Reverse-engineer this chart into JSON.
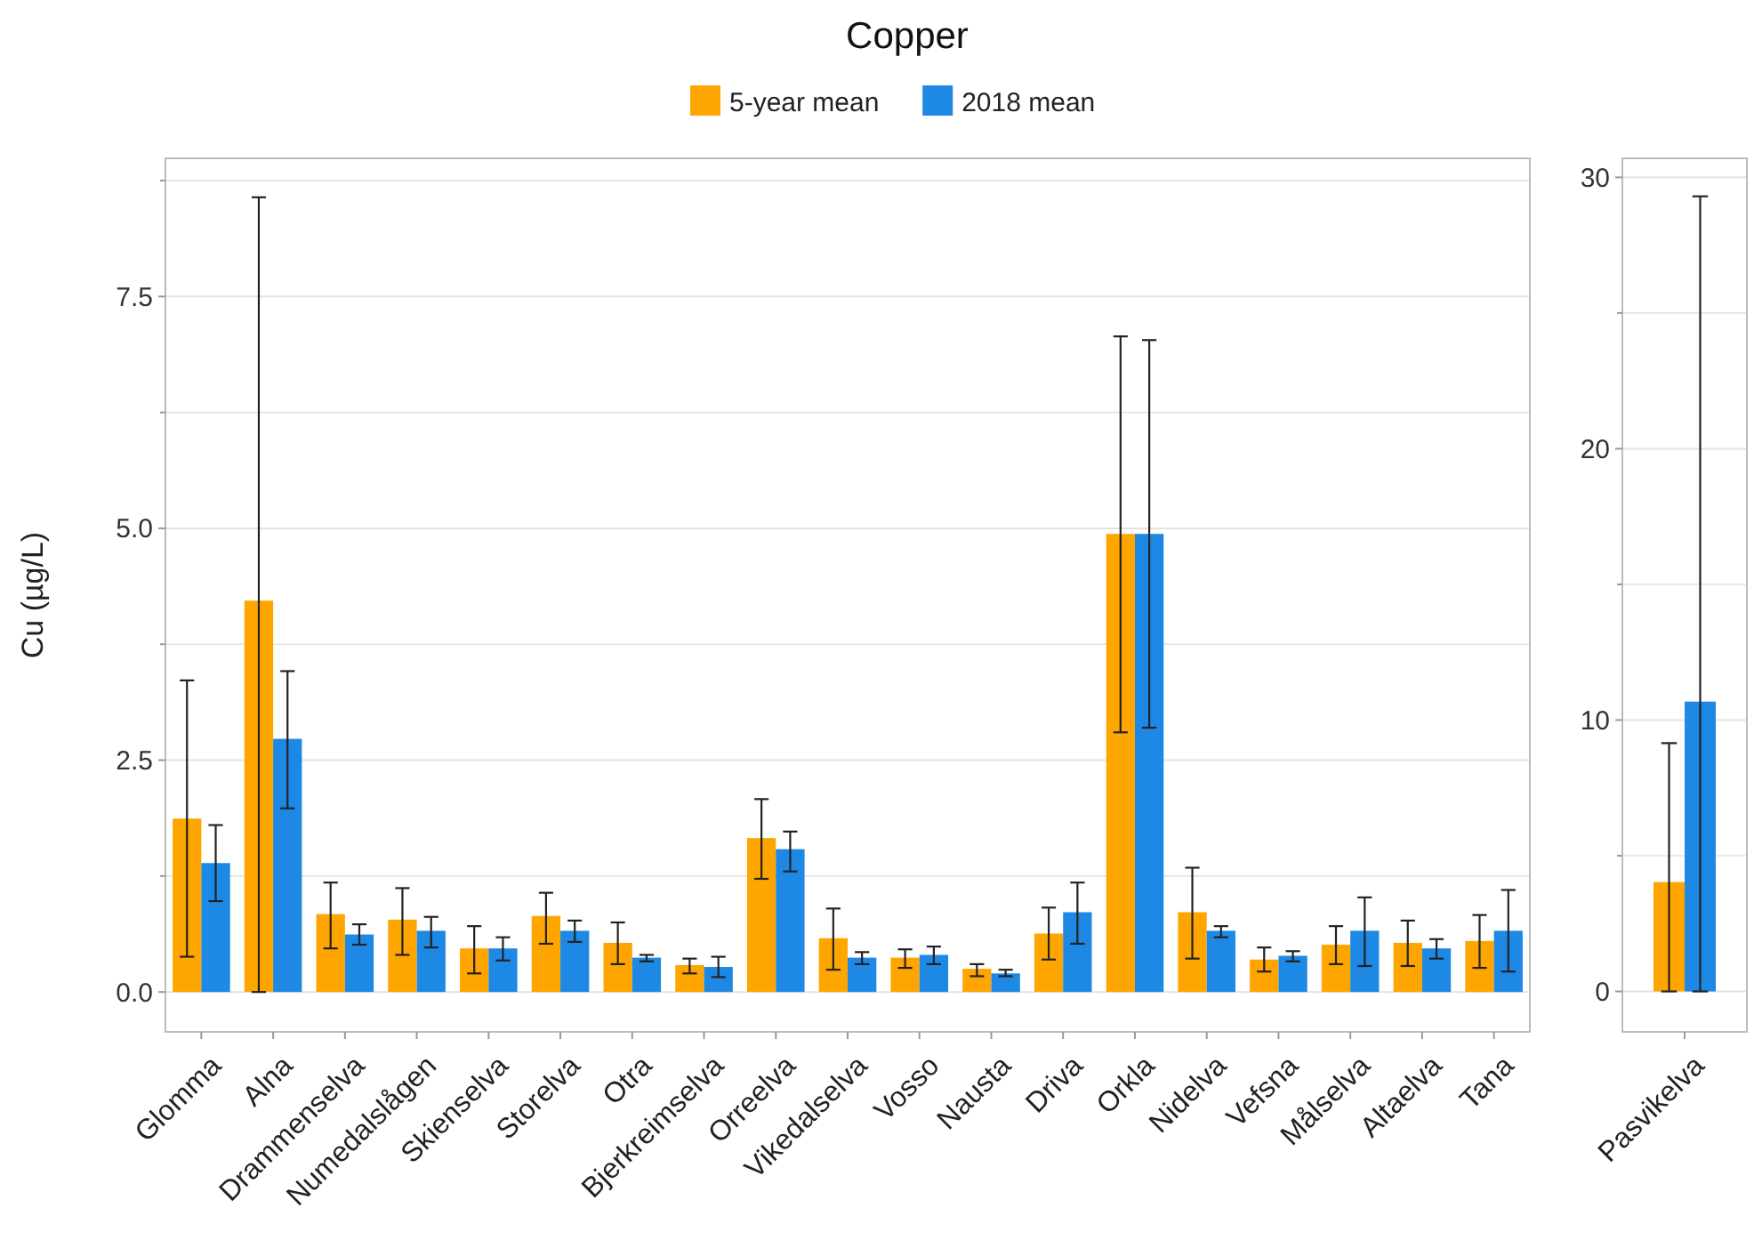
{
  "chart_data": [
    {
      "type": "bar",
      "title": "Copper",
      "ylabel": "Cu (µg/L)",
      "legend": "top",
      "grid": true,
      "categories": [
        "Glomma",
        "Alna",
        "Drammenselva",
        "Numedalslågen",
        "Skienselva",
        "Storelva",
        "Otra",
        "Bjerkreimselva",
        "Orreelva",
        "Vikedalselva",
        "Vosso",
        "Nausta",
        "Driva",
        "Orkla",
        "Nidelva",
        "Vefsna",
        "Målselva",
        "Altaelva",
        "Tana"
      ],
      "ylim": [
        -0.43,
        8.99
      ],
      "yticks": [
        {
          "value": 0,
          "label": "0.0"
        },
        {
          "value": 1.25,
          "label": null
        },
        2.5,
        {
          "value": 3.75,
          "label": null
        },
        {
          "value": 5,
          "label": "5.0"
        },
        {
          "value": 6.25,
          "label": null
        },
        7.5,
        {
          "value": 8.75,
          "label": null
        }
      ],
      "series": [
        {
          "name": "5-year mean",
          "color": "#ffa500",
          "values": [
            1.87,
            4.22,
            0.84,
            0.78,
            0.47,
            0.82,
            0.53,
            0.29,
            1.66,
            0.58,
            0.37,
            0.25,
            0.63,
            4.94,
            0.86,
            0.35,
            0.51,
            0.53,
            0.55
          ],
          "errors": [
            [
              0.38,
              3.36
            ],
            [
              0,
              8.57
            ],
            [
              0.47,
              1.18
            ],
            [
              0.4,
              1.12
            ],
            [
              0.2,
              0.71
            ],
            [
              0.52,
              1.07
            ],
            [
              0.3,
              0.75
            ],
            [
              0.2,
              0.36
            ],
            [
              1.22,
              2.08
            ],
            [
              0.24,
              0.9
            ],
            [
              0.26,
              0.46
            ],
            [
              0.17,
              0.3
            ],
            [
              0.35,
              0.91
            ],
            [
              2.8,
              7.07
            ],
            [
              0.36,
              1.34
            ],
            [
              0.22,
              0.48
            ],
            [
              0.3,
              0.71
            ],
            [
              0.28,
              0.77
            ],
            [
              0.26,
              0.83
            ]
          ]
        },
        {
          "name": "2018 mean",
          "color": "#1e88e5",
          "values": [
            1.39,
            2.73,
            0.62,
            0.66,
            0.47,
            0.66,
            0.37,
            0.27,
            1.54,
            0.37,
            0.4,
            0.2,
            0.86,
            4.94,
            0.66,
            0.39,
            0.66,
            0.47,
            0.66
          ],
          "errors": [
            [
              0.98,
              1.8
            ],
            [
              1.98,
              3.46
            ],
            [
              0.51,
              0.73
            ],
            [
              0.48,
              0.81
            ],
            [
              0.34,
              0.59
            ],
            [
              0.54,
              0.77
            ],
            [
              0.33,
              0.4
            ],
            [
              0.16,
              0.38
            ],
            [
              1.3,
              1.73
            ],
            [
              0.3,
              0.43
            ],
            [
              0.3,
              0.49
            ],
            [
              0.17,
              0.24
            ],
            [
              0.52,
              1.18
            ],
            [
              2.85,
              7.03
            ],
            [
              0.59,
              0.71
            ],
            [
              0.33,
              0.44
            ],
            [
              0.28,
              1.02
            ],
            [
              0.36,
              0.57
            ],
            [
              0.22,
              1.1
            ]
          ]
        }
      ]
    },
    {
      "type": "bar",
      "grid": true,
      "categories": [
        "Pasvikelva"
      ],
      "ylim": [
        -1.49,
        30.7
      ],
      "yticks": [
        0,
        {
          "value": 5,
          "label": null
        },
        10,
        {
          "value": 15,
          "label": null
        },
        20,
        {
          "value": 25,
          "label": null
        },
        30
      ],
      "series": [
        {
          "color": "#ffa500",
          "values": [
            4.03
          ],
          "errors": [
            [
              0,
              9.15
            ]
          ]
        },
        {
          "color": "#1e88e5",
          "values": [
            10.68
          ],
          "errors": [
            [
              0,
              29.3
            ]
          ]
        }
      ]
    }
  ]
}
